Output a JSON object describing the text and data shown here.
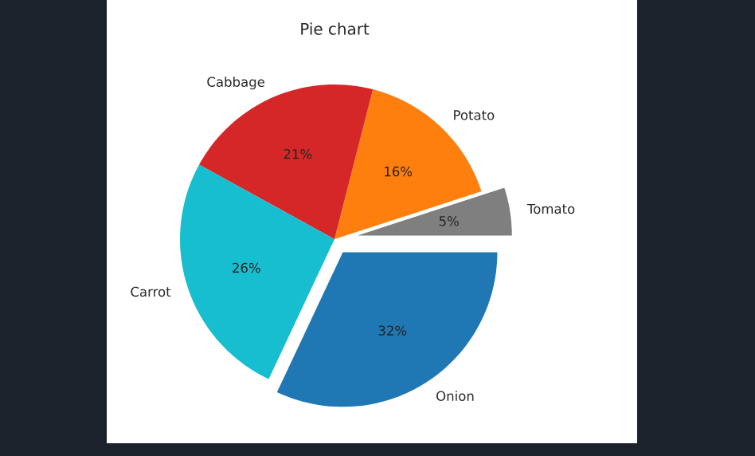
{
  "chart_data": {
    "type": "pie",
    "title": "Pie chart",
    "categories": [
      "Tomato",
      "Potato",
      "Cabbage",
      "Carrot",
      "Onion"
    ],
    "values": [
      5,
      16,
      21,
      26,
      32
    ],
    "value_labels": [
      "5%",
      "16%",
      "21%",
      "26%",
      "32%"
    ],
    "colors": [
      "#7f7f7f",
      "#ff7f0e",
      "#d62728",
      "#17becf",
      "#1f77b4"
    ]
  }
}
